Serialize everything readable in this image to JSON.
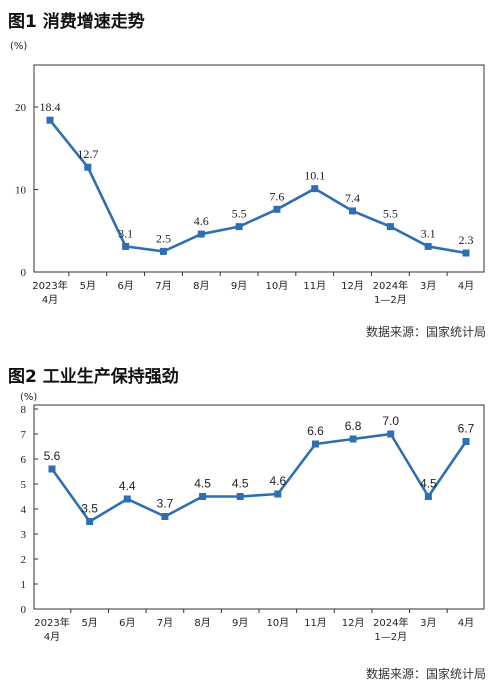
{
  "chart_data": [
    {
      "type": "line",
      "title": "图1  消费增速走势",
      "unit_label": "(%)",
      "source": "数据来源：国家统计局",
      "color": "#2e6fb3",
      "categories": [
        [
          "2023年",
          "4月"
        ],
        [
          "5月"
        ],
        [
          "6月"
        ],
        [
          "7月"
        ],
        [
          "8月"
        ],
        [
          "9月"
        ],
        [
          "10月"
        ],
        [
          "11月"
        ],
        [
          "12月"
        ],
        [
          "2024年",
          "1—2月"
        ],
        [
          "3月"
        ],
        [
          "4月"
        ]
      ],
      "values": [
        18.4,
        12.7,
        3.1,
        2.5,
        4.6,
        5.5,
        7.6,
        10.1,
        7.4,
        5.5,
        3.1,
        2.3
      ],
      "value_labels": [
        "18.4",
        "12.7",
        "3.1",
        "2.5",
        "4.6",
        "5.5",
        "7.6",
        "10.1",
        "7.4",
        "5.5",
        "3.1",
        "2.3"
      ],
      "yticks": [
        "0",
        "10",
        "20"
      ],
      "ylim": [
        0,
        20
      ],
      "grid": false,
      "marker": "square"
    },
    {
      "type": "line",
      "title": "图2  工业生产保持强劲",
      "unit_label": "(%)",
      "source": "数据来源：国家统计局",
      "color": "#2e6fb3",
      "categories": [
        [
          "2023年",
          "4月"
        ],
        [
          "5月"
        ],
        [
          "6月"
        ],
        [
          "7月"
        ],
        [
          "8月"
        ],
        [
          "9月"
        ],
        [
          "10月"
        ],
        [
          "11月"
        ],
        [
          "12月"
        ],
        [
          "2024年",
          "1—2月"
        ],
        [
          "3月"
        ],
        [
          "4月"
        ]
      ],
      "values": [
        5.6,
        3.5,
        4.4,
        3.7,
        4.5,
        4.5,
        4.6,
        6.6,
        6.8,
        7.0,
        4.5,
        6.7
      ],
      "value_labels": [
        "5.6",
        "3.5",
        "4.4",
        "3.7",
        "4.5",
        "4.5",
        "4.6",
        "6.6",
        "6.8",
        "7.0",
        "4.5",
        "6.7"
      ],
      "yticks": [
        "0",
        "1",
        "2",
        "3",
        "4",
        "5",
        "6",
        "7",
        "8"
      ],
      "ylim": [
        0,
        8
      ],
      "grid": false,
      "marker": "square"
    }
  ]
}
